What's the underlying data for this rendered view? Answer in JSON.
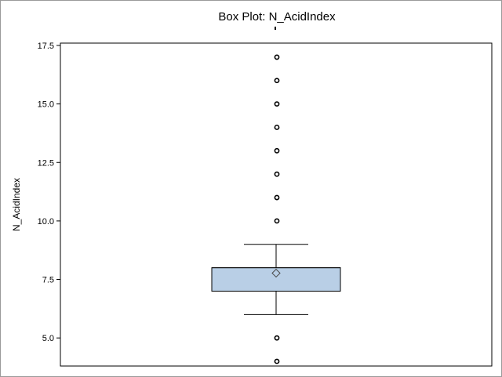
{
  "chart_data": {
    "type": "box",
    "title": "Box Plot: N_AcidIndex",
    "xlabel": "",
    "ylabel": "N_AcidIndex",
    "ylim": [
      3.8,
      17.6
    ],
    "yticks": [
      5.0,
      7.5,
      10.0,
      12.5,
      15.0,
      17.5
    ],
    "ytick_labels": [
      "5.0",
      "7.5",
      "10.0",
      "12.5",
      "15.0",
      "17.5"
    ],
    "grid": false,
    "box": {
      "q1": 7,
      "median": 8,
      "q3": 8,
      "mean": 7.77,
      "whisker_low": 6,
      "whisker_high": 9,
      "outliers": [
        4,
        5,
        10,
        11,
        12,
        13,
        14,
        15,
        16,
        17
      ]
    },
    "colors": {
      "box_fill": "#b9cfe6",
      "line": "#000000",
      "mean_marker": "#4a4a4a"
    }
  }
}
